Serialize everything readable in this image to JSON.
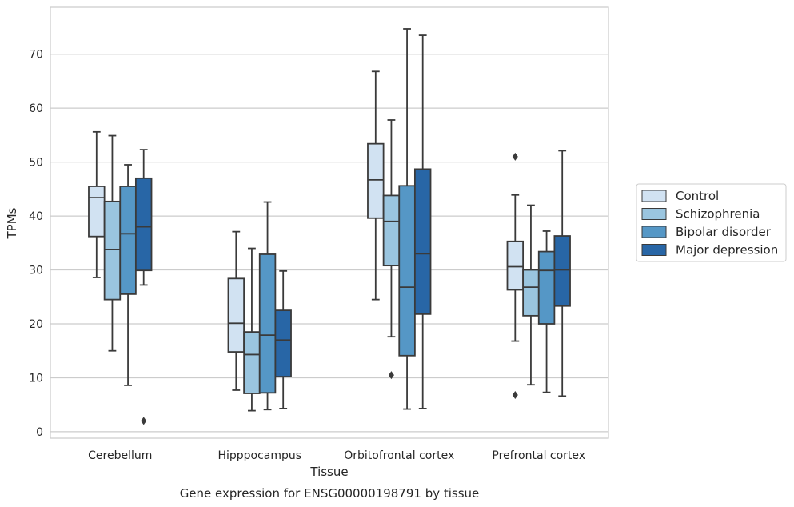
{
  "chart_data": {
    "type": "box",
    "caption": "Gene expression for ENSG00000198791 by tissue",
    "xlabel": "Tissue",
    "ylabel": "TPMs",
    "ylim": [
      -1.2,
      78.7
    ],
    "yticks": [
      0,
      10,
      20,
      30,
      40,
      50,
      60,
      70
    ],
    "grid": "horizontal",
    "legend_position": "right",
    "categories": [
      "Cerebellum",
      "Hipppocampus",
      "Orbitofrontal cortex",
      "Prefrontal cortex"
    ],
    "series": [
      {
        "name": "Control",
        "color": "#d1e2f2",
        "boxes": [
          {
            "whisker_low": 28.6,
            "q1": 36.2,
            "median": 43.4,
            "q3": 45.5,
            "whisker_high": 55.6,
            "outliers": []
          },
          {
            "whisker_low": 7.7,
            "q1": 14.8,
            "median": 20.1,
            "q3": 28.4,
            "whisker_high": 37.1,
            "outliers": []
          },
          {
            "whisker_low": 24.5,
            "q1": 39.6,
            "median": 46.7,
            "q3": 53.4,
            "whisker_high": 66.8,
            "outliers": []
          },
          {
            "whisker_low": 16.8,
            "q1": 26.3,
            "median": 30.6,
            "q3": 35.3,
            "whisker_high": 43.9,
            "outliers": [
              51.0,
              6.8
            ]
          }
        ]
      },
      {
        "name": "Schizophrenia",
        "color": "#9ac5df",
        "boxes": [
          {
            "whisker_low": 15.0,
            "q1": 24.5,
            "median": 33.8,
            "q3": 42.7,
            "whisker_high": 54.9,
            "outliers": []
          },
          {
            "whisker_low": 3.9,
            "q1": 7.1,
            "median": 14.3,
            "q3": 18.5,
            "whisker_high": 34.0,
            "outliers": []
          },
          {
            "whisker_low": 17.6,
            "q1": 30.8,
            "median": 39.0,
            "q3": 43.8,
            "whisker_high": 57.8,
            "outliers": [
              10.5
            ]
          },
          {
            "whisker_low": 8.7,
            "q1": 21.5,
            "median": 26.8,
            "q3": 30.0,
            "whisker_high": 42.0,
            "outliers": []
          }
        ]
      },
      {
        "name": "Bipolar disorder",
        "color": "#5597c6",
        "boxes": [
          {
            "whisker_low": 8.6,
            "q1": 25.5,
            "median": 36.7,
            "q3": 45.5,
            "whisker_high": 49.5,
            "outliers": []
          },
          {
            "whisker_low": 4.1,
            "q1": 7.2,
            "median": 17.9,
            "q3": 32.9,
            "whisker_high": 42.6,
            "outliers": []
          },
          {
            "whisker_low": 4.2,
            "q1": 14.1,
            "median": 26.8,
            "q3": 45.6,
            "whisker_high": 74.7,
            "outliers": []
          },
          {
            "whisker_low": 7.3,
            "q1": 20.0,
            "median": 29.9,
            "q3": 33.4,
            "whisker_high": 37.2,
            "outliers": []
          }
        ]
      },
      {
        "name": "Major depression",
        "color": "#2866a6",
        "boxes": [
          {
            "whisker_low": 27.2,
            "q1": 29.9,
            "median": 38.0,
            "q3": 47.0,
            "whisker_high": 52.3,
            "outliers": [
              2.0
            ]
          },
          {
            "whisker_low": 4.3,
            "q1": 10.2,
            "median": 17.0,
            "q3": 22.5,
            "whisker_high": 29.8,
            "outliers": []
          },
          {
            "whisker_low": 4.3,
            "q1": 21.8,
            "median": 33.0,
            "q3": 48.7,
            "whisker_high": 73.5,
            "outliers": []
          },
          {
            "whisker_low": 6.6,
            "q1": 23.3,
            "median": 30.0,
            "q3": 36.3,
            "whisker_high": 52.1,
            "outliers": []
          }
        ]
      }
    ]
  }
}
